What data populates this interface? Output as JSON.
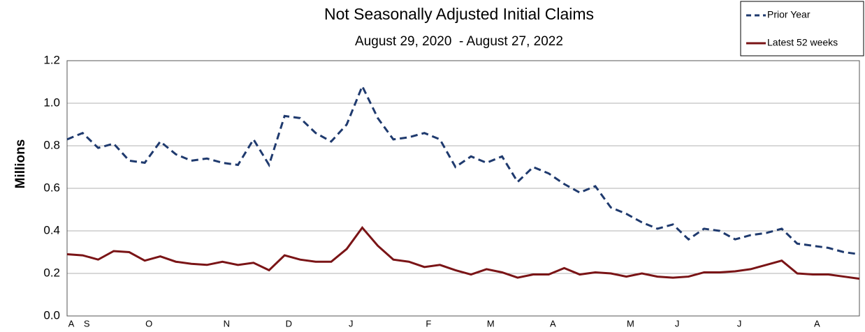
{
  "chart_data": {
    "type": "line",
    "title": "Not Seasonally Adjusted Initial Claims",
    "subtitle": "August 29, 2020  - August 27, 2022",
    "y_label": "Millions",
    "categories": [
      "A",
      "S",
      null,
      null,
      null,
      "O",
      null,
      null,
      null,
      null,
      "N",
      null,
      null,
      null,
      "D",
      null,
      null,
      null,
      "J",
      null,
      null,
      null,
      null,
      "F",
      null,
      null,
      null,
      "M",
      null,
      null,
      null,
      "A",
      null,
      null,
      null,
      null,
      "M",
      null,
      null,
      "J",
      null,
      null,
      null,
      "J",
      null,
      null,
      null,
      null,
      "A",
      null,
      null,
      null
    ],
    "series": [
      {
        "name": "Prior Year",
        "color": "#1f3a6e",
        "linestyle": "dashed",
        "values": [
          0.83,
          0.86,
          0.79,
          0.81,
          0.73,
          0.72,
          0.82,
          0.76,
          0.73,
          0.74,
          0.72,
          0.71,
          0.83,
          0.71,
          0.94,
          0.93,
          0.86,
          0.82,
          0.9,
          1.08,
          0.93,
          0.83,
          0.84,
          0.86,
          0.83,
          0.7,
          0.75,
          0.72,
          0.75,
          0.63,
          0.7,
          0.67,
          0.62,
          0.58,
          0.61,
          0.51,
          0.48,
          0.44,
          0.41,
          0.43,
          0.36,
          0.41,
          0.4,
          0.36,
          0.38,
          0.39,
          0.41,
          0.34,
          0.33,
          0.32,
          0.3,
          0.29
        ]
      },
      {
        "name": "Latest 52 weeks",
        "color": "#7a1416",
        "linestyle": "solid",
        "values": [
          0.29,
          0.285,
          0.265,
          0.305,
          0.3,
          0.26,
          0.28,
          0.255,
          0.245,
          0.24,
          0.255,
          0.24,
          0.25,
          0.215,
          0.285,
          0.265,
          0.255,
          0.255,
          0.315,
          0.415,
          0.33,
          0.265,
          0.255,
          0.23,
          0.24,
          0.215,
          0.195,
          0.22,
          0.205,
          0.18,
          0.195,
          0.195,
          0.225,
          0.195,
          0.205,
          0.2,
          0.185,
          0.2,
          0.185,
          0.18,
          0.185,
          0.205,
          0.205,
          0.21,
          0.22,
          0.24,
          0.26,
          0.2,
          0.195,
          0.195,
          0.185,
          0.175
        ]
      }
    ],
    "ylim": [
      0,
      1.2
    ],
    "yticks": [
      {
        "value": 0,
        "label": "0.0"
      },
      0.2,
      0.4,
      0.6,
      0.8,
      {
        "value": 1,
        "label": "1.0"
      },
      1.2
    ],
    "grid": true,
    "legend": "upper right"
  }
}
